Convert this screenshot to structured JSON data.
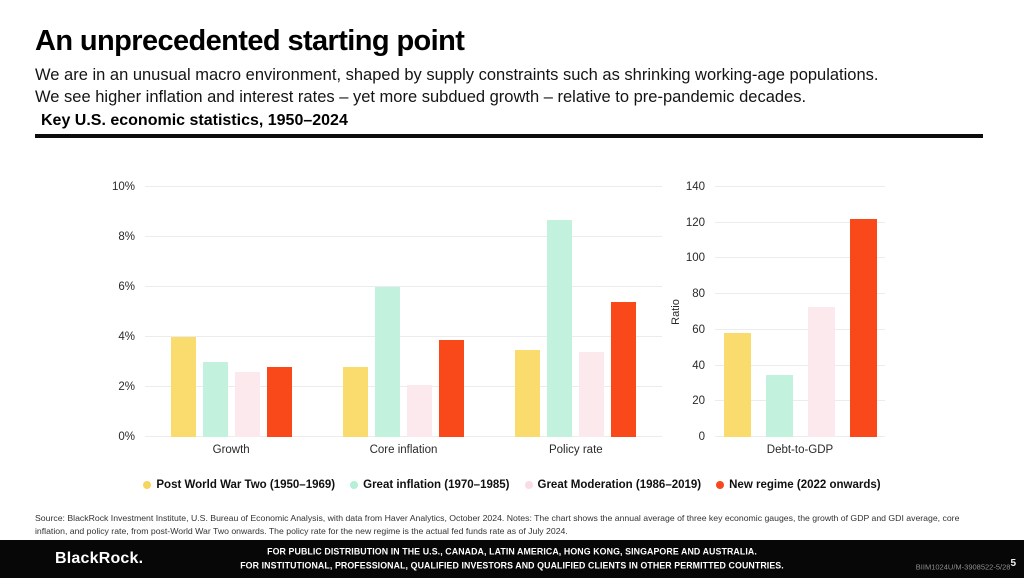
{
  "header": {
    "title": "An unprecedented starting point",
    "subtitle_line1": "We are in an unusual macro environment, shaped by supply constraints such as shrinking working-age populations.",
    "subtitle_line2": "We see higher inflation and interest rates – yet more subdued growth – relative to pre-pandemic decades.",
    "section_heading": "Key U.S. economic statistics, 1950–2024"
  },
  "chart_data": [
    {
      "name": "key-economic-gauges",
      "type": "bar",
      "categories": [
        "Growth",
        "Core inflation",
        "Policy rate"
      ],
      "series": [
        {
          "name": "Post World War Two (1950–1969)",
          "color": "#FADB6E",
          "values": [
            4.0,
            2.8,
            3.5
          ]
        },
        {
          "name": "Great inflation (1970–1985)",
          "color": "#C2F2DE",
          "values": [
            3.0,
            6.0,
            8.7
          ]
        },
        {
          "name": "Great Moderation (1986–2019)",
          "color": "#FCE9EE",
          "values": [
            2.6,
            2.1,
            3.4
          ]
        },
        {
          "name": "New regime (2022 onwards)",
          "color": "#F9481A",
          "values": [
            2.8,
            3.9,
            5.4
          ]
        }
      ],
      "ylim": [
        0,
        10
      ],
      "yticks": [
        0,
        2,
        4,
        6,
        8,
        10
      ],
      "ytick_suffix": "%",
      "ylabel": "",
      "xlabel": "",
      "grid": true,
      "legend_position": "bottom"
    },
    {
      "name": "debt-to-gdp",
      "type": "bar",
      "categories": [
        "Debt-to-GDP"
      ],
      "series": [
        {
          "name": "Post World War Two (1950–1969)",
          "color": "#FADB6E",
          "values": [
            58
          ]
        },
        {
          "name": "Great inflation (1970–1985)",
          "color": "#C2F2DE",
          "values": [
            35
          ]
        },
        {
          "name": "Great Moderation (1986–2019)",
          "color": "#FCE9EE",
          "values": [
            73
          ]
        },
        {
          "name": "New regime (2022 onwards)",
          "color": "#F9481A",
          "values": [
            122
          ]
        }
      ],
      "ylim": [
        0,
        140
      ],
      "yticks": [
        0,
        20,
        40,
        60,
        80,
        100,
        120,
        140
      ],
      "ytick_suffix": "",
      "ylabel": "Ratio",
      "xlabel": "",
      "grid": true,
      "legend_position": "bottom"
    }
  ],
  "legend": {
    "items": [
      {
        "label": "Post World War Two (1950–1969)",
        "color": "#F7D45C"
      },
      {
        "label": "Great inflation (1970–1985)",
        "color": "#B4EFD6"
      },
      {
        "label": "Great Moderation (1986–2019)",
        "color": "#F9DCE4"
      },
      {
        "label": "New regime (2022 onwards)",
        "color": "#F9481A"
      }
    ]
  },
  "source_note": "Source: BlackRock Investment Institute, U.S. Bureau of Economic Analysis, with data from Haver Analytics, October 2024. Notes: The chart shows the annual average of three key economic gauges, the growth of GDP and GDI average, core inflation, and policy rate, from post-World War Two onwards. The policy rate for the new regime is the actual fed funds rate as of July 2024.",
  "footer": {
    "brand": "BlackRock.",
    "disclosure_line1": "FOR PUBLIC DISTRIBUTION IN THE U.S., CANADA, LATIN AMERICA, HONG KONG, SINGAPORE AND AUSTRALIA.",
    "disclosure_line2": "FOR INSTITUTIONAL, PROFESSIONAL, QUALIFIED INVESTORS AND QUALIFIED CLIENTS IN OTHER PERMITTED COUNTRIES.",
    "document_code": "BIIM1024U/M-3908522-5/28",
    "page_number": "5"
  }
}
